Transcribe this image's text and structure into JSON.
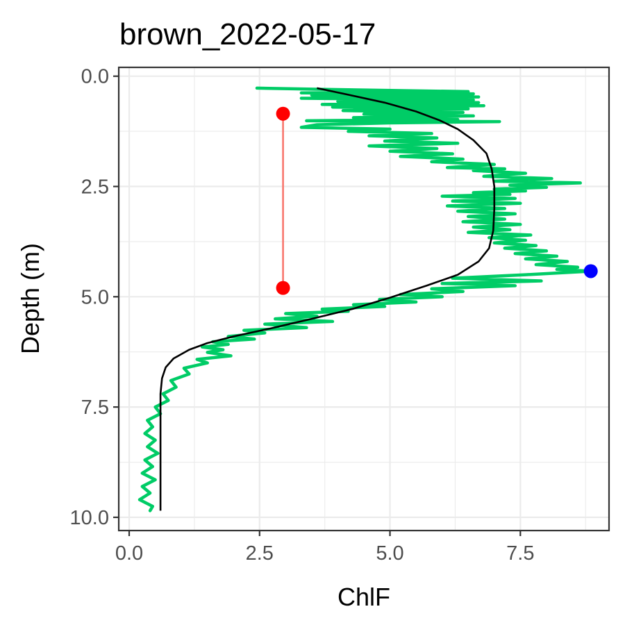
{
  "chart_data": {
    "type": "line",
    "title": "brown_2022-05-17",
    "xlabel": "ChlF",
    "ylabel": "Depth (m)",
    "xlim": [
      -0.2,
      9.2
    ],
    "ylim": [
      10.3,
      -0.2
    ],
    "y_reversed": true,
    "grid": true,
    "x_ticks": [
      {
        "value": 0,
        "label": "0.0"
      },
      {
        "value": 2.5,
        "label": "2.5"
      },
      {
        "value": 5,
        "label": "5.0"
      },
      {
        "value": 7.5,
        "label": "7.5"
      }
    ],
    "y_ticks": [
      {
        "value": 0,
        "label": "0.0"
      },
      {
        "value": 2.5,
        "label": "2.5"
      },
      {
        "value": 5,
        "label": "5.0"
      },
      {
        "value": 7.5,
        "label": "7.5"
      },
      {
        "value": 10,
        "label": "10.0"
      }
    ],
    "series": [
      {
        "kind": "observed",
        "color": "#00cc66",
        "points": [
          [
            2.45,
            0.27
          ],
          [
            3.8,
            0.3
          ],
          [
            6.5,
            0.35
          ],
          [
            3.3,
            0.38
          ],
          [
            6.6,
            0.4
          ],
          [
            3.5,
            0.43
          ],
          [
            6.7,
            0.47
          ],
          [
            3.3,
            0.5
          ],
          [
            6.6,
            0.54
          ],
          [
            4.0,
            0.57
          ],
          [
            6.7,
            0.6
          ],
          [
            3.7,
            0.64
          ],
          [
            6.8,
            0.67
          ],
          [
            3.9,
            0.7
          ],
          [
            6.5,
            0.74
          ],
          [
            4.1,
            0.78
          ],
          [
            6.4,
            0.82
          ],
          [
            4.5,
            0.86
          ],
          [
            6.6,
            0.9
          ],
          [
            4.3,
            0.94
          ],
          [
            6.3,
            0.98
          ],
          [
            3.4,
            1.01
          ],
          [
            7.1,
            1.03
          ],
          [
            5.0,
            1.06
          ],
          [
            3.6,
            1.1
          ],
          [
            3.3,
            1.16
          ],
          [
            5.0,
            1.2
          ],
          [
            4.2,
            1.25
          ],
          [
            5.8,
            1.3
          ],
          [
            4.6,
            1.35
          ],
          [
            5.9,
            1.4
          ],
          [
            4.9,
            1.47
          ],
          [
            6.3,
            1.52
          ],
          [
            4.6,
            1.58
          ],
          [
            5.9,
            1.64
          ],
          [
            5.0,
            1.7
          ],
          [
            6.2,
            1.76
          ],
          [
            5.2,
            1.82
          ],
          [
            6.4,
            1.88
          ],
          [
            5.8,
            1.94
          ],
          [
            7.0,
            2.0
          ],
          [
            6.1,
            2.07
          ],
          [
            7.2,
            2.1
          ],
          [
            6.6,
            2.14
          ],
          [
            7.6,
            2.2
          ],
          [
            6.8,
            2.27
          ],
          [
            8.1,
            2.32
          ],
          [
            7.0,
            2.38
          ],
          [
            8.65,
            2.42
          ],
          [
            7.3,
            2.47
          ],
          [
            8.0,
            2.52
          ],
          [
            7.0,
            2.56
          ],
          [
            7.6,
            2.6
          ],
          [
            6.6,
            2.64
          ],
          [
            7.3,
            2.68
          ],
          [
            6.0,
            2.72
          ],
          [
            7.4,
            2.77
          ],
          [
            6.2,
            2.83
          ],
          [
            7.5,
            2.88
          ],
          [
            6.1,
            2.94
          ],
          [
            7.2,
            3.0
          ],
          [
            6.3,
            3.06
          ],
          [
            7.4,
            3.12
          ],
          [
            6.5,
            3.18
          ],
          [
            7.2,
            3.24
          ],
          [
            6.4,
            3.3
          ],
          [
            7.5,
            3.36
          ],
          [
            6.6,
            3.42
          ],
          [
            7.3,
            3.48
          ],
          [
            6.5,
            3.54
          ],
          [
            7.7,
            3.6
          ],
          [
            6.9,
            3.66
          ],
          [
            7.6,
            3.72
          ],
          [
            7.0,
            3.78
          ],
          [
            7.8,
            3.84
          ],
          [
            7.2,
            3.9
          ],
          [
            8.0,
            3.96
          ],
          [
            7.4,
            4.02
          ],
          [
            8.2,
            4.08
          ],
          [
            7.6,
            4.14
          ],
          [
            8.4,
            4.2
          ],
          [
            7.8,
            4.27
          ],
          [
            8.6,
            4.33
          ],
          [
            8.2,
            4.38
          ],
          [
            8.85,
            4.42
          ],
          [
            7.6,
            4.5
          ],
          [
            6.2,
            4.58
          ],
          [
            7.9,
            4.64
          ],
          [
            6.0,
            4.7
          ],
          [
            7.4,
            4.75
          ],
          [
            5.8,
            4.82
          ],
          [
            6.4,
            4.88
          ],
          [
            5.2,
            4.95
          ],
          [
            6.0,
            5.0
          ],
          [
            4.8,
            5.06
          ],
          [
            5.5,
            5.12
          ],
          [
            4.3,
            5.18
          ],
          [
            4.9,
            5.22
          ],
          [
            3.7,
            5.28
          ],
          [
            4.2,
            5.33
          ],
          [
            3.0,
            5.38
          ],
          [
            3.6,
            5.44
          ],
          [
            2.8,
            5.5
          ],
          [
            3.9,
            5.56
          ],
          [
            2.6,
            5.62
          ],
          [
            3.4,
            5.7
          ],
          [
            2.2,
            5.76
          ],
          [
            2.6,
            5.82
          ],
          [
            1.9,
            5.9
          ],
          [
            2.4,
            5.96
          ],
          [
            1.6,
            6.02
          ],
          [
            1.9,
            6.08
          ],
          [
            1.4,
            6.14
          ],
          [
            1.8,
            6.2
          ],
          [
            1.5,
            6.26
          ],
          [
            1.95,
            6.34
          ],
          [
            1.3,
            6.42
          ],
          [
            1.5,
            6.5
          ],
          [
            1.05,
            6.62
          ],
          [
            1.15,
            6.75
          ],
          [
            0.8,
            6.9
          ],
          [
            0.9,
            7.05
          ],
          [
            0.65,
            7.2
          ],
          [
            0.75,
            7.35
          ],
          [
            0.5,
            7.5
          ],
          [
            0.6,
            7.65
          ],
          [
            0.35,
            7.8
          ],
          [
            0.45,
            7.95
          ],
          [
            0.3,
            8.1
          ],
          [
            0.5,
            8.25
          ],
          [
            0.35,
            8.4
          ],
          [
            0.55,
            8.55
          ],
          [
            0.3,
            8.7
          ],
          [
            0.45,
            8.85
          ],
          [
            0.25,
            9.0
          ],
          [
            0.5,
            9.15
          ],
          [
            0.25,
            9.3
          ],
          [
            0.4,
            9.45
          ],
          [
            0.2,
            9.6
          ],
          [
            0.45,
            9.75
          ],
          [
            0.4,
            9.85
          ]
        ]
      },
      {
        "kind": "fit",
        "color": "#000000",
        "points": [
          [
            3.6,
            0.27
          ],
          [
            4.2,
            0.42
          ],
          [
            4.9,
            0.6
          ],
          [
            5.5,
            0.8
          ],
          [
            5.95,
            1.0
          ],
          [
            6.3,
            1.2
          ],
          [
            6.6,
            1.45
          ],
          [
            6.85,
            1.75
          ],
          [
            6.95,
            2.1
          ],
          [
            7.0,
            2.5
          ],
          [
            7.0,
            3.0
          ],
          [
            6.98,
            3.5
          ],
          [
            6.9,
            3.9
          ],
          [
            6.7,
            4.2
          ],
          [
            6.3,
            4.5
          ],
          [
            5.7,
            4.75
          ],
          [
            5.0,
            5.02
          ],
          [
            4.3,
            5.27
          ],
          [
            3.5,
            5.5
          ],
          [
            2.7,
            5.72
          ],
          [
            2.0,
            5.9
          ],
          [
            1.5,
            6.05
          ],
          [
            1.15,
            6.2
          ],
          [
            0.85,
            6.4
          ],
          [
            0.7,
            6.6
          ],
          [
            0.63,
            6.85
          ],
          [
            0.6,
            7.2
          ],
          [
            0.6,
            8.0
          ],
          [
            0.6,
            9.0
          ],
          [
            0.6,
            9.85
          ]
        ]
      }
    ],
    "annotations": [
      {
        "kind": "segment",
        "color": "#f8766d",
        "x": 2.95,
        "y_start": 0.85,
        "y_end": 4.8
      },
      {
        "kind": "point",
        "color": "#ff0000",
        "x": 2.95,
        "y": 0.85
      },
      {
        "kind": "point",
        "color": "#ff0000",
        "x": 2.95,
        "y": 4.8
      },
      {
        "kind": "point",
        "color": "#0000ff",
        "x": 8.85,
        "y": 4.42
      }
    ]
  }
}
